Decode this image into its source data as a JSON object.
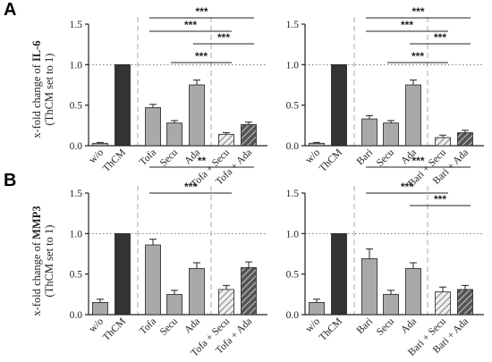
{
  "figure": {
    "panel_labels": [
      "A",
      "B"
    ],
    "rows": [
      {
        "ylabel_prefix": "x-fold change of ",
        "ylabel_bold": "IL-6",
        "ylabel_sub": "(ThCM set to 1)"
      },
      {
        "ylabel_prefix": "x-fold change of ",
        "ylabel_bold": "MMP3",
        "ylabel_sub": "(ThCM set to 1)"
      }
    ]
  },
  "chart_data": [
    {
      "type": "bar",
      "row": 0,
      "col": 0,
      "categories": [
        "w/o",
        "ThCM",
        "Tofa",
        "Secu",
        "Ada",
        "Tofa + Secu",
        "Tofa + Ada"
      ],
      "values": [
        0.03,
        1.0,
        0.47,
        0.28,
        0.75,
        0.14,
        0.26
      ],
      "errors": [
        0.01,
        0.0,
        0.04,
        0.03,
        0.06,
        0.02,
        0.03
      ],
      "styles": [
        "light",
        "dark",
        "light",
        "light",
        "light",
        "hatch-light",
        "hatch-dark"
      ],
      "ylim": [
        0,
        1.5
      ],
      "yticks": [
        0.0,
        0.5,
        1.0,
        1.5
      ],
      "refline": 1.0,
      "significance": [
        {
          "from": 2,
          "to": 6,
          "label": "***"
        },
        {
          "from": 2,
          "to": 5,
          "label": "***"
        },
        {
          "from": 4,
          "to": 6,
          "label": "***"
        },
        {
          "from": 3,
          "to": 5,
          "label": "***"
        }
      ]
    },
    {
      "type": "bar",
      "row": 0,
      "col": 1,
      "categories": [
        "w/o",
        "ThCM",
        "Bari",
        "Secu",
        "Ada",
        "Bari + Secu",
        "Bari + Ada"
      ],
      "values": [
        0.03,
        1.0,
        0.33,
        0.28,
        0.75,
        0.1,
        0.16
      ],
      "errors": [
        0.01,
        0.0,
        0.04,
        0.03,
        0.06,
        0.03,
        0.03
      ],
      "styles": [
        "light",
        "dark",
        "light",
        "light",
        "light",
        "hatch-light",
        "hatch-dark"
      ],
      "ylim": [
        0,
        1.5
      ],
      "yticks": [
        0.0,
        0.5,
        1.0,
        1.5
      ],
      "refline": 1.0,
      "significance": [
        {
          "from": 2,
          "to": 6,
          "label": "***"
        },
        {
          "from": 2,
          "to": 5,
          "label": "***"
        },
        {
          "from": 4,
          "to": 6,
          "label": "***"
        },
        {
          "from": 3,
          "to": 5,
          "label": "***"
        }
      ]
    },
    {
      "type": "bar",
      "row": 1,
      "col": 0,
      "categories": [
        "w/o",
        "ThCM",
        "Tofa",
        "Secu",
        "Ada",
        "Tofa + Secu",
        "Tofa + Ada"
      ],
      "values": [
        0.15,
        1.0,
        0.86,
        0.25,
        0.57,
        0.31,
        0.58
      ],
      "errors": [
        0.04,
        0.0,
        0.07,
        0.05,
        0.07,
        0.05,
        0.07
      ],
      "styles": [
        "light",
        "dark",
        "light",
        "light",
        "light",
        "hatch-light",
        "hatch-dark"
      ],
      "ylim": [
        0,
        1.5
      ],
      "yticks": [
        0.0,
        0.5,
        1.0,
        1.5
      ],
      "refline": 1.0,
      "significance": [
        {
          "from": 2,
          "to": 6,
          "label": "**"
        },
        {
          "from": 2,
          "to": 5,
          "label": "***"
        }
      ]
    },
    {
      "type": "bar",
      "row": 1,
      "col": 1,
      "categories": [
        "w/o",
        "ThCM",
        "Bari",
        "Secu",
        "Ada",
        "Bari + Secu",
        "Bari + Ada"
      ],
      "values": [
        0.15,
        1.0,
        0.69,
        0.25,
        0.57,
        0.28,
        0.31
      ],
      "errors": [
        0.04,
        0.0,
        0.12,
        0.05,
        0.07,
        0.06,
        0.05
      ],
      "styles": [
        "light",
        "dark",
        "light",
        "light",
        "light",
        "hatch-light",
        "hatch-dark"
      ],
      "ylim": [
        0,
        1.5
      ],
      "yticks": [
        0.0,
        0.5,
        1.0,
        1.5
      ],
      "refline": 1.0,
      "significance": [
        {
          "from": 2,
          "to": 6,
          "label": "***"
        },
        {
          "from": 2,
          "to": 5,
          "label": "***"
        },
        {
          "from": 4,
          "to": 6,
          "label": "***"
        }
      ]
    }
  ],
  "colors": {
    "light_bar": "#a9a9a9",
    "dark_bar": "#333333",
    "hatch_light_bg": "#f0f0f0",
    "hatch_light_line": "#888888",
    "hatch_dark_bg": "#555555",
    "hatch_dark_line": "#bfbfbf",
    "axis": "#222222",
    "guide": "#aaaaaa"
  }
}
